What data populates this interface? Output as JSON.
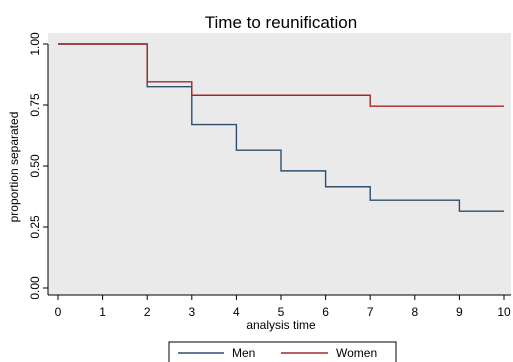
{
  "chart_data": {
    "type": "line",
    "title": "Time to reunification",
    "xlabel": "analysis time",
    "ylabel": "proportion separated",
    "xlim": [
      0,
      10
    ],
    "ylim": [
      0,
      1
    ],
    "x_ticks": [
      0,
      1,
      2,
      3,
      4,
      5,
      6,
      7,
      8,
      9,
      10
    ],
    "x_tick_labels": [
      "0",
      "1",
      "2",
      "3",
      "4",
      "5",
      "6",
      "7",
      "8",
      "9",
      "10"
    ],
    "y_ticks": [
      0,
      0.25,
      0.5,
      0.75,
      1.0
    ],
    "y_tick_labels": [
      "0.00",
      "0.25",
      "0.50",
      "0.75",
      "1.00"
    ],
    "step": true,
    "grid": false,
    "plot_background": "#eaeaea",
    "legend_position": "bottom",
    "series": [
      {
        "name": "Men",
        "color": "#2e4e70",
        "x": [
          0,
          2,
          3,
          4,
          5,
          6,
          7,
          9,
          10
        ],
        "y": [
          1.0,
          0.825,
          0.67,
          0.565,
          0.48,
          0.415,
          0.36,
          0.315,
          0.315
        ]
      },
      {
        "name": "Women",
        "color": "#a02a2a",
        "x": [
          0,
          2,
          3,
          7,
          10
        ],
        "y": [
          1.0,
          0.845,
          0.79,
          0.745,
          0.745
        ]
      }
    ]
  }
}
